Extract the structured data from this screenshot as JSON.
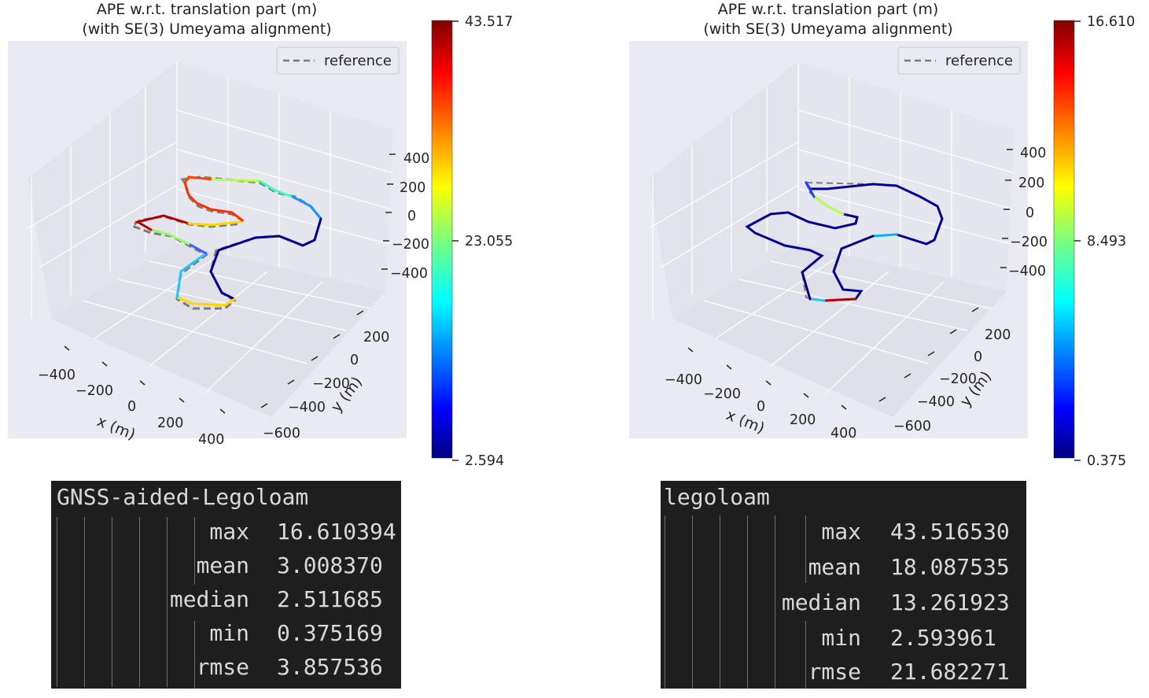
{
  "chart_data": [
    {
      "type": "line3d",
      "title": "APE w.r.t. translation part (m)\n(with SE(3) Umeyama alignment)",
      "title_lines": [
        "APE w.r.t. translation part (m)",
        "(with SE(3) Umeyama alignment)"
      ],
      "legend": {
        "entries": [
          "reference"
        ],
        "placement": "top-right"
      },
      "xlabel": "x (m)",
      "ylabel": "y (m)",
      "x_ticks": [
        "−400",
        "−200",
        "0",
        "200",
        "400"
      ],
      "y_ticks": [
        "−600",
        "−400",
        "−200",
        "0",
        "200"
      ],
      "z_ticks": [
        "400",
        "200",
        "0",
        "−200",
        "−400"
      ],
      "colorbar": {
        "colormap": "jet",
        "min": 2.594,
        "mid": 23.055,
        "max": 43.517,
        "labels": [
          "43.517",
          "23.055",
          "2.594"
        ]
      }
    },
    {
      "type": "line3d",
      "title": "APE w.r.t. translation part (m)\n(with SE(3) Umeyama alignment)",
      "title_lines": [
        "APE w.r.t. translation part (m)",
        "(with SE(3) Umeyama alignment)"
      ],
      "legend": {
        "entries": [
          "reference"
        ],
        "placement": "top-right"
      },
      "xlabel": "x (m)",
      "ylabel": "y (m)",
      "x_ticks": [
        "−400",
        "−200",
        "0",
        "200",
        "400"
      ],
      "y_ticks": [
        "−600",
        "−400",
        "−200",
        "0",
        "200"
      ],
      "z_ticks": [
        "400",
        "200",
        "0",
        "−200",
        "−400"
      ],
      "colorbar": {
        "colormap": "jet",
        "min": 0.375,
        "mid": 8.493,
        "max": 16.61,
        "labels": [
          "16.610",
          "8.493",
          "0.375"
        ]
      }
    }
  ],
  "stats_left": {
    "header": "GNSS-aided-Legoloam",
    "rows": [
      {
        "key": "max",
        "value": "16.610394"
      },
      {
        "key": "mean",
        "value": "3.008370"
      },
      {
        "key": "median",
        "value": "2.511685"
      },
      {
        "key": "min",
        "value": "0.375169"
      },
      {
        "key": "rmse",
        "value": "3.857536"
      }
    ]
  },
  "stats_right": {
    "header": "legoloam",
    "rows": [
      {
        "key": "max",
        "value": "43.516530"
      },
      {
        "key": "mean",
        "value": "18.087535"
      },
      {
        "key": "median",
        "value": "13.261923"
      },
      {
        "key": "min",
        "value": "2.593961"
      },
      {
        "key": "rmse",
        "value": "21.682271"
      }
    ]
  },
  "colors": {
    "pane_bg": "#eaeaf2",
    "grid": "#ffffff",
    "reference": "#7a7a7a",
    "terminal_bg": "#1e1e1e",
    "terminal_fg": "#d9d9d9"
  }
}
